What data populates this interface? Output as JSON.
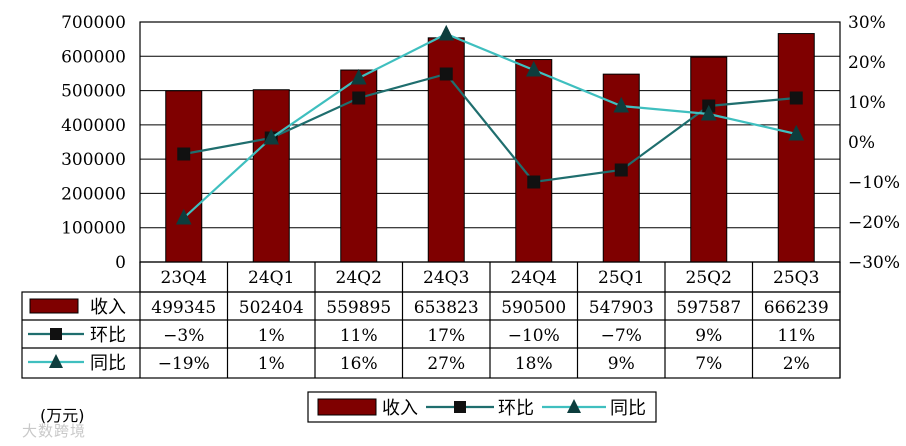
{
  "chart_data": {
    "type": "bar",
    "categories": [
      "23Q4",
      "24Q1",
      "24Q2",
      "24Q3",
      "24Q4",
      "25Q1",
      "25Q2",
      "25Q3"
    ],
    "series": [
      {
        "name": "收入",
        "kind": "bar",
        "axis": "left",
        "values": [
          499345,
          502404,
          559895,
          653823,
          590500,
          547903,
          597587,
          666239
        ],
        "labels": [
          "499345",
          "502404",
          "559895",
          "653823",
          "590500",
          "547903",
          "597587",
          "666239"
        ],
        "color": "#7f0000"
      },
      {
        "name": "环比",
        "kind": "line",
        "axis": "right",
        "marker": "square",
        "values": [
          -3,
          1,
          11,
          17,
          -10,
          -7,
          9,
          11
        ],
        "labels": [
          "−3%",
          "1%",
          "11%",
          "17%",
          "−10%",
          "−7%",
          "9%",
          "11%"
        ],
        "color": "#1f6e6e"
      },
      {
        "name": "同比",
        "kind": "line",
        "axis": "right",
        "marker": "triangle",
        "values": [
          -19,
          1,
          16,
          27,
          18,
          9,
          7,
          2
        ],
        "labels": [
          "−19%",
          "1%",
          "16%",
          "27%",
          "18%",
          "9%",
          "7%",
          "2%"
        ],
        "color": "#3fbfbf"
      }
    ],
    "y_left": {
      "range": [
        0,
        700000
      ],
      "ticks": [
        "700000",
        "600000",
        "500000",
        "400000",
        "300000",
        "200000",
        "100000",
        "0"
      ]
    },
    "y_right": {
      "range": [
        -30,
        30
      ],
      "ticks": [
        "30%",
        "20%",
        "10%",
        "0%",
        "−10%",
        "−20%",
        "−30%"
      ]
    },
    "grid": true,
    "legend": "bottom",
    "data_table": true
  },
  "unit_label": "(万元)",
  "watermark": "大数跨境"
}
